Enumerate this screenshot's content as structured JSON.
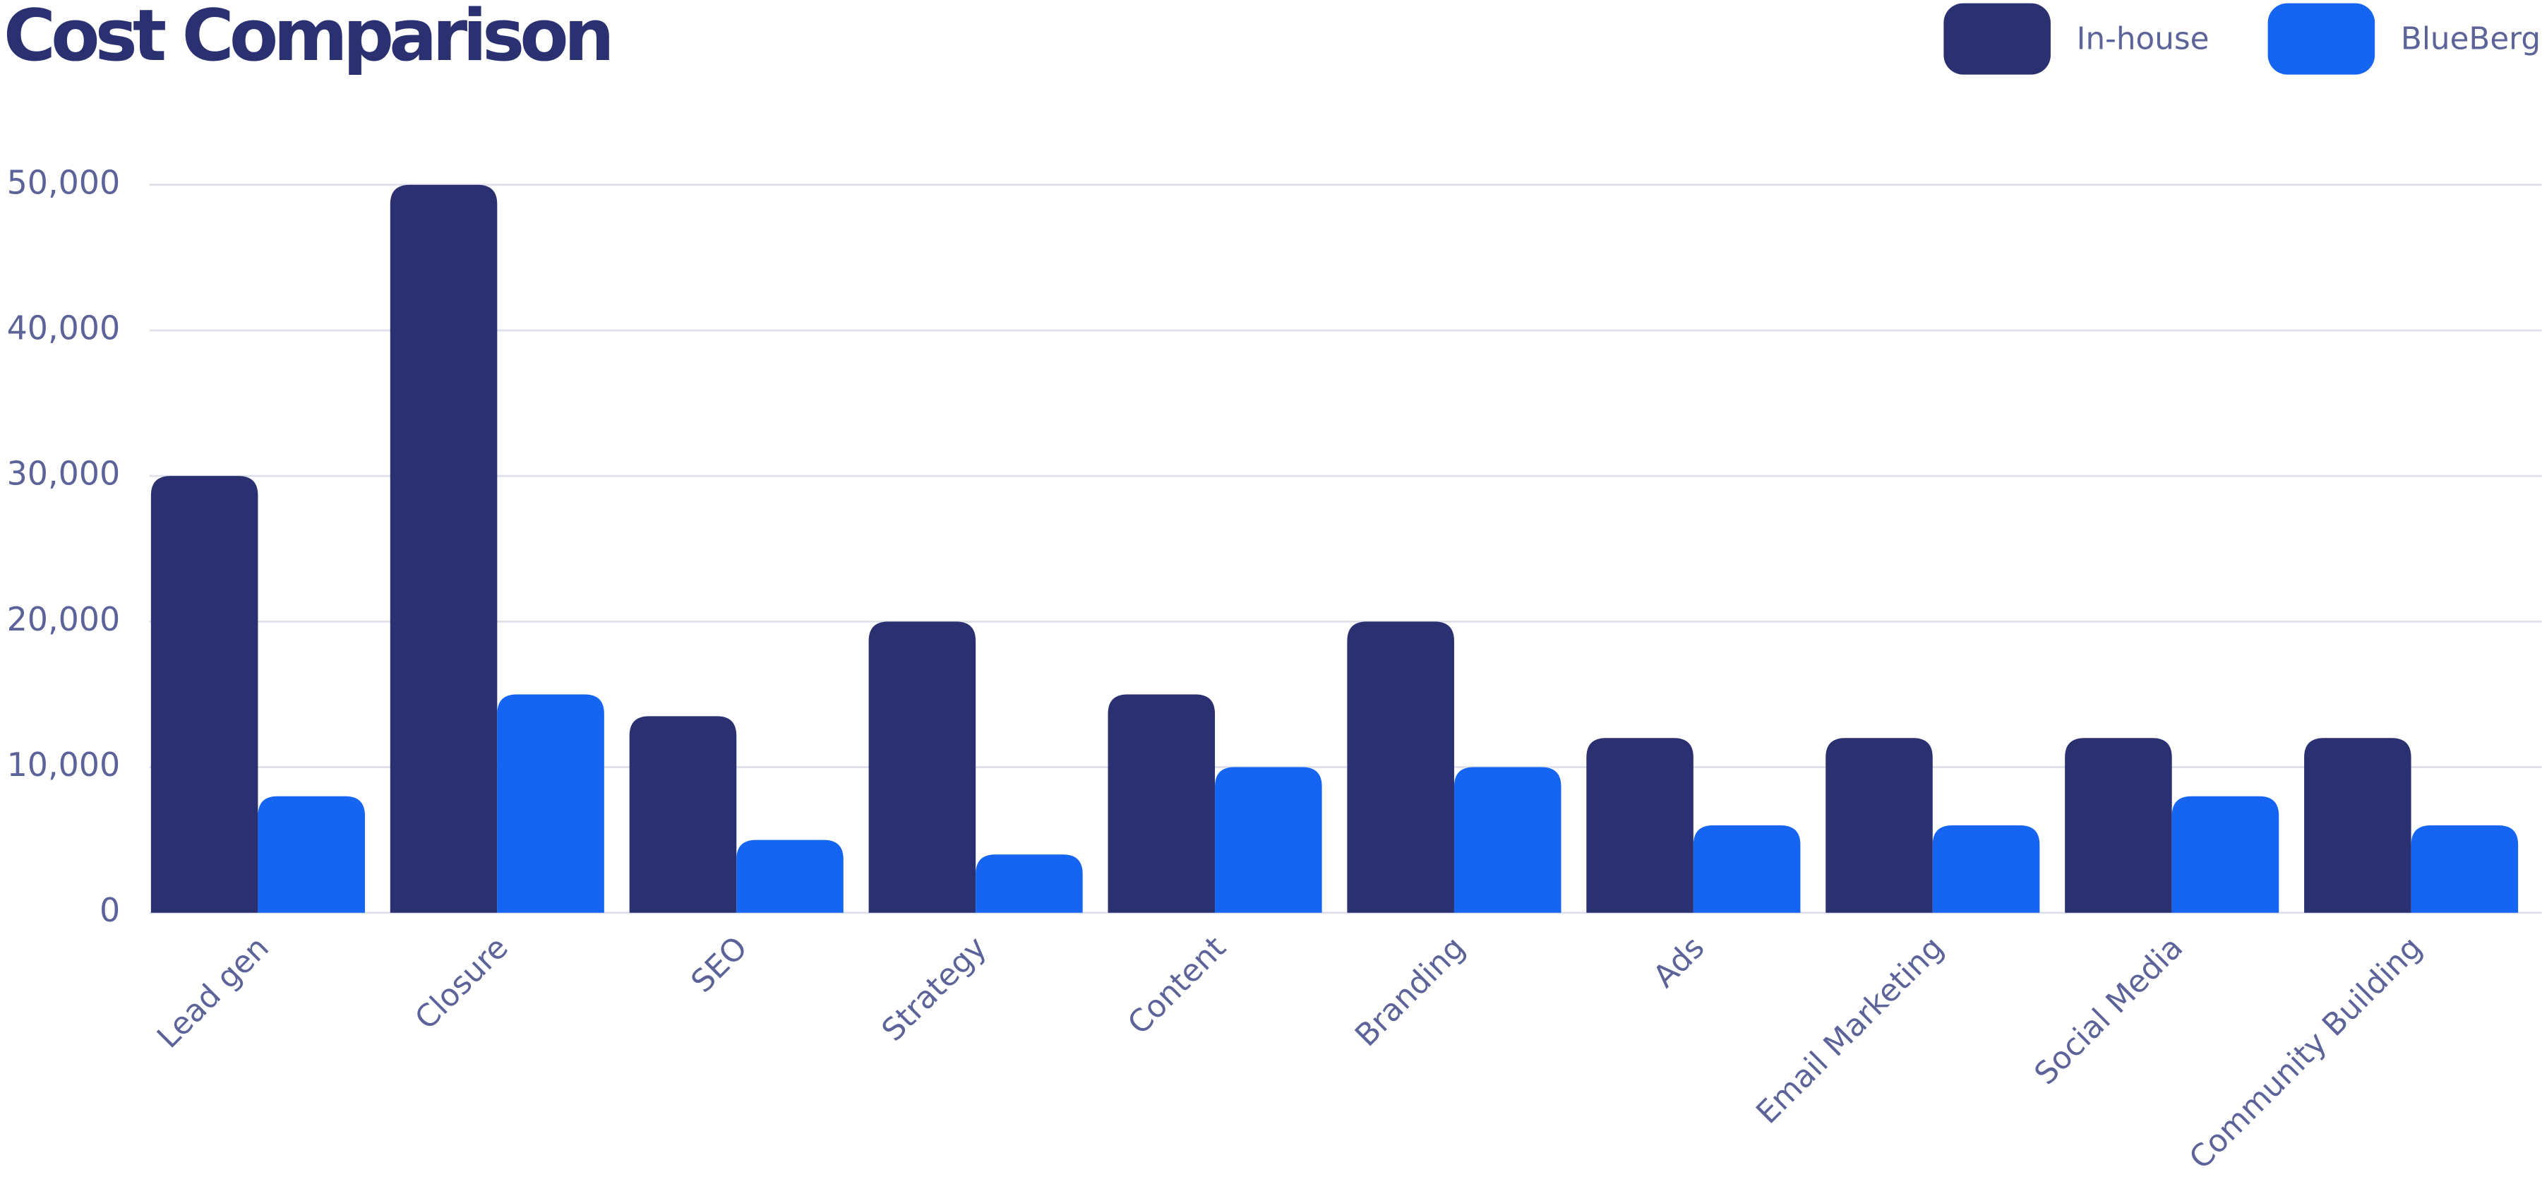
{
  "chart_data": {
    "type": "bar",
    "title": "Cost Comparison",
    "categories": [
      "Lead gen",
      "Closure",
      "SEO",
      "Strategy",
      "Content",
      "Branding",
      "Ads",
      "Email Marketing",
      "Social Media",
      "Community Building"
    ],
    "series": [
      {
        "name": "In-house",
        "color": "#2b3170",
        "values": [
          30000,
          50000,
          13500,
          20000,
          15000,
          20000,
          12000,
          12000,
          12000,
          12000
        ]
      },
      {
        "name": "BlueBerg",
        "color": "#1565f2",
        "values": [
          8000,
          15000,
          5000,
          4000,
          10000,
          10000,
          6000,
          6000,
          8000,
          6000
        ]
      }
    ],
    "ylim": [
      0,
      50000
    ],
    "yticks": [
      0,
      {
        "value": 10000,
        "label": "10,000"
      },
      {
        "value": 20000,
        "label": "20,000"
      },
      {
        "value": 30000,
        "label": "30,000"
      },
      {
        "value": 40000,
        "label": "40,000"
      },
      {
        "value": 50000,
        "label": "50,000"
      }
    ],
    "grid": true,
    "legend": "top-right"
  }
}
